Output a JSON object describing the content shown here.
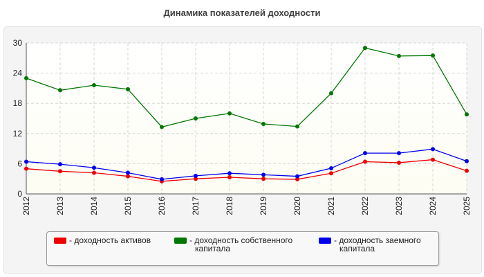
{
  "chart_data": {
    "type": "line",
    "title": "Динамика показателей доходности",
    "x": [
      "2012",
      "2013",
      "2014",
      "2015",
      "2016",
      "2017",
      "2018",
      "2019",
      "2020",
      "2021",
      "2022",
      "2023",
      "2024",
      "2025"
    ],
    "ylim": [
      0,
      30
    ],
    "yticks": [
      "0",
      "6",
      "12",
      "18",
      "24",
      "30"
    ],
    "grid": true,
    "legend_position": "bottom",
    "series": [
      {
        "name": "- доходность активов",
        "color": "#ee0000",
        "values": [
          5.0,
          4.5,
          4.2,
          3.5,
          2.5,
          3.0,
          3.3,
          3.0,
          2.9,
          4.1,
          6.4,
          6.2,
          6.8,
          4.6
        ]
      },
      {
        "name": "- доходность собственного капитала",
        "color": "#007700",
        "values": [
          23.0,
          20.6,
          21.6,
          20.8,
          13.3,
          15.0,
          16.0,
          13.9,
          13.4,
          20.0,
          29.0,
          27.4,
          27.5,
          15.8
        ]
      },
      {
        "name": "- доходность заемного капитала",
        "color": "#0000ee",
        "values": [
          6.4,
          5.9,
          5.2,
          4.2,
          2.9,
          3.6,
          4.1,
          3.8,
          3.5,
          5.1,
          8.1,
          8.1,
          8.9,
          6.5
        ]
      }
    ]
  },
  "legend": {
    "assets_line1": "- доходность активов",
    "equity_line1": "- доходность собственного",
    "equity_line2": "капитала",
    "debt_line1": "- доходность заемного",
    "debt_line2": "капитала"
  }
}
